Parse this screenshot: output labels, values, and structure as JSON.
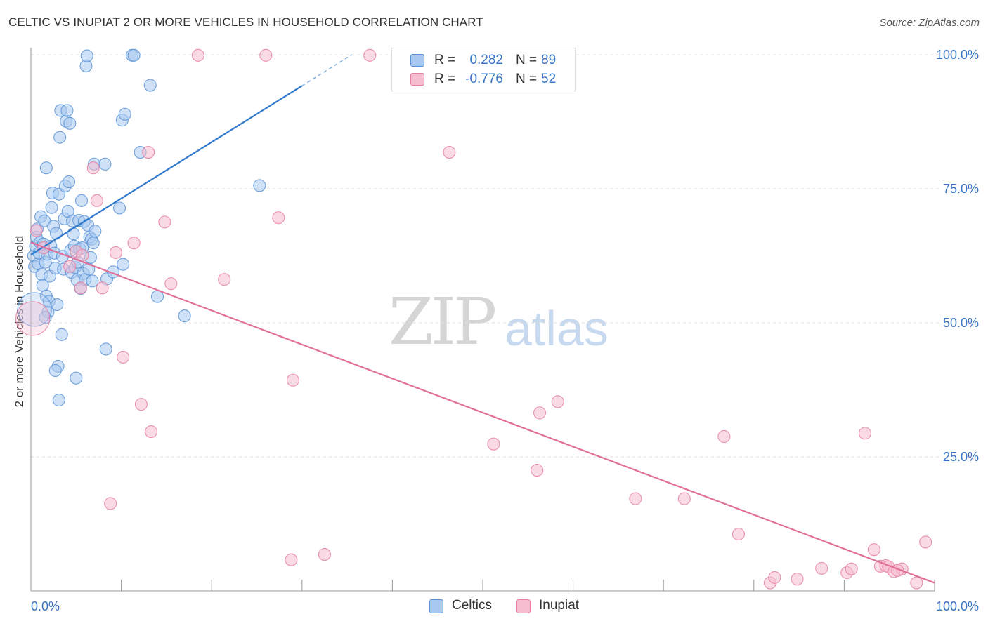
{
  "header": {
    "title": "CELTIC VS INUPIAT 2 OR MORE VEHICLES IN HOUSEHOLD CORRELATION CHART",
    "source": "Source: ZipAtlas.com"
  },
  "watermark": {
    "zip": "ZIP",
    "atlas": "atlas"
  },
  "colors": {
    "celtics_fill": "#a8c8f0",
    "celtics_stroke": "#5a93d6",
    "celtics_line": "#2f78cc",
    "inupiat_fill": "#f6bccf",
    "inupiat_stroke": "#e67fa3",
    "inupiat_line": "#e0709a",
    "value_text": "#3a75c4",
    "grid": "#dddddd"
  },
  "legend_top": [
    {
      "r_label": "R =",
      "r_value": "0.282",
      "n_label": "N =",
      "n_value": "89"
    },
    {
      "r_label": "R =",
      "r_value": "-0.776",
      "n_label": "N =",
      "n_value": "52"
    }
  ],
  "legend_bottom": [
    "Celtics",
    "Inupiat"
  ],
  "chart_data": {
    "type": "scatter",
    "title": "CELTIC VS INUPIAT 2 OR MORE VEHICLES IN HOUSEHOLD CORRELATION CHART",
    "xlabel": "",
    "ylabel": "2 or more Vehicles in Household",
    "xlim": [
      0,
      100
    ],
    "ylim": [
      0,
      102
    ],
    "x_tick_labels": [
      "0.0%",
      "100.0%"
    ],
    "y_ticks": [
      25,
      50,
      75,
      100
    ],
    "y_tick_labels": [
      "25.0%",
      "50.0%",
      "75.0%",
      "100.0%"
    ],
    "grid": true,
    "legend_position": "bottom",
    "series": [
      {
        "name": "Celtics",
        "r": 0.282,
        "n": 89,
        "trend": {
          "x": [
            0,
            30
          ],
          "y": [
            62.7,
            94.2
          ]
        },
        "trend_dashed": {
          "x": [
            30,
            35.5
          ],
          "y": [
            94.2,
            100
          ]
        },
        "points": [
          [
            0.3,
            62.5
          ],
          [
            0.4,
            60.5
          ],
          [
            0.5,
            64.3
          ],
          [
            0.6,
            66
          ],
          [
            0.7,
            67.5
          ],
          [
            0.8,
            61
          ],
          [
            0.9,
            63
          ],
          [
            1,
            65
          ],
          [
            1.1,
            69.8
          ],
          [
            1.2,
            59
          ],
          [
            1.3,
            57
          ],
          [
            1.4,
            64.7
          ],
          [
            1.5,
            69
          ],
          [
            1.6,
            61.3
          ],
          [
            1.7,
            55
          ],
          [
            1.8,
            62.8
          ],
          [
            1.9,
            52
          ],
          [
            2,
            54
          ],
          [
            2.1,
            58.7
          ],
          [
            2.2,
            64.3
          ],
          [
            2.3,
            71.5
          ],
          [
            2.4,
            74.2
          ],
          [
            2.5,
            68
          ],
          [
            2.6,
            63
          ],
          [
            2.7,
            60.2
          ],
          [
            2.8,
            66.7
          ],
          [
            2.9,
            53.4
          ],
          [
            3,
            41.9
          ],
          [
            3.1,
            74
          ],
          [
            3.2,
            84.6
          ],
          [
            3.3,
            89.6
          ],
          [
            3.4,
            47.8
          ],
          [
            3.5,
            62.4
          ],
          [
            3.6,
            60
          ],
          [
            3.7,
            69.4
          ],
          [
            3.8,
            75.5
          ],
          [
            3.9,
            87.6
          ],
          [
            4,
            89.6
          ],
          [
            4.1,
            70.8
          ],
          [
            4.2,
            76.3
          ],
          [
            4.3,
            87.2
          ],
          [
            4.4,
            63.5
          ],
          [
            4.5,
            59.4
          ],
          [
            4.6,
            69
          ],
          [
            4.7,
            66.6
          ],
          [
            4.8,
            64.3
          ],
          [
            4.9,
            60.3
          ],
          [
            5,
            39.7
          ],
          [
            5.1,
            58
          ],
          [
            5.2,
            61.3
          ],
          [
            5.3,
            69.1
          ],
          [
            5.4,
            63.8
          ],
          [
            5.5,
            56.4
          ],
          [
            5.6,
            72.8
          ],
          [
            5.7,
            64
          ],
          [
            5.8,
            59.2
          ],
          [
            5.9,
            68.9
          ],
          [
            6,
            58.1
          ],
          [
            6.1,
            97.9
          ],
          [
            6.2,
            99.8
          ],
          [
            6.3,
            68.2
          ],
          [
            6.4,
            60
          ],
          [
            6.5,
            66
          ],
          [
            6.6,
            62.2
          ],
          [
            6.7,
            65.6
          ],
          [
            6.8,
            57.8
          ],
          [
            6.9,
            64.9
          ],
          [
            7,
            79.6
          ],
          [
            7.1,
            67.1
          ],
          [
            8.2,
            79.6
          ],
          [
            8.3,
            45.1
          ],
          [
            8.4,
            58.2
          ],
          [
            9.1,
            59.5
          ],
          [
            9.8,
            71.4
          ],
          [
            10.1,
            87.8
          ],
          [
            10.2,
            60.9
          ],
          [
            10.4,
            88.9
          ],
          [
            11.2,
            99.9
          ],
          [
            11.4,
            99.9
          ],
          [
            12.1,
            81.8
          ],
          [
            13.2,
            94.3
          ],
          [
            14,
            54.9
          ],
          [
            17,
            51.3
          ],
          [
            25.3,
            75.6
          ],
          [
            1.6,
            51
          ],
          [
            3.1,
            35.6
          ],
          [
            2.7,
            41.1
          ],
          [
            1.7,
            78.9
          ],
          [
            0.4,
            52.5
          ]
        ]
      },
      {
        "name": "Inupiat",
        "r": -0.776,
        "n": 52,
        "trend": {
          "x": [
            0,
            100
          ],
          "y": [
            65,
            1.5
          ]
        },
        "points": [
          [
            0.2,
            50.8
          ],
          [
            0.6,
            67.2
          ],
          [
            1.4,
            64
          ],
          [
            4.3,
            60.5
          ],
          [
            5,
            63.3
          ],
          [
            5.5,
            56.5
          ],
          [
            5.7,
            62.6
          ],
          [
            6.9,
            78.9
          ],
          [
            7.3,
            72.8
          ],
          [
            7.9,
            56.5
          ],
          [
            8.8,
            16.3
          ],
          [
            9.4,
            63.1
          ],
          [
            10.2,
            43.6
          ],
          [
            11.4,
            64.9
          ],
          [
            12.2,
            34.8
          ],
          [
            13,
            81.8
          ],
          [
            13.3,
            29.7
          ],
          [
            14.8,
            68.8
          ],
          [
            15.5,
            57.3
          ],
          [
            18.5,
            99.9
          ],
          [
            21.4,
            58.1
          ],
          [
            26,
            99.9
          ],
          [
            27.4,
            69.6
          ],
          [
            28.8,
            5.8
          ],
          [
            29,
            39.3
          ],
          [
            32.5,
            6.8
          ],
          [
            37.5,
            99.9
          ],
          [
            46.3,
            81.8
          ],
          [
            51.2,
            27.4
          ],
          [
            56,
            22.5
          ],
          [
            56.3,
            33.2
          ],
          [
            58.3,
            35.3
          ],
          [
            66.9,
            17.2
          ],
          [
            72.3,
            17.2
          ],
          [
            76.7,
            28.8
          ],
          [
            78.3,
            10.6
          ],
          [
            81.8,
            1.5
          ],
          [
            82.3,
            2.5
          ],
          [
            84.8,
            2.2
          ],
          [
            87.5,
            4.2
          ],
          [
            90.3,
            3.4
          ],
          [
            90.8,
            4.1
          ],
          [
            92.3,
            29.4
          ],
          [
            93.3,
            7.7
          ],
          [
            94,
            4.6
          ],
          [
            94.6,
            4.7
          ],
          [
            94.9,
            4.5
          ],
          [
            95.5,
            3.6
          ],
          [
            96.4,
            4.1
          ],
          [
            98,
            1.5
          ],
          [
            99,
            9.1
          ],
          [
            95.9,
            3.8
          ]
        ]
      }
    ]
  }
}
